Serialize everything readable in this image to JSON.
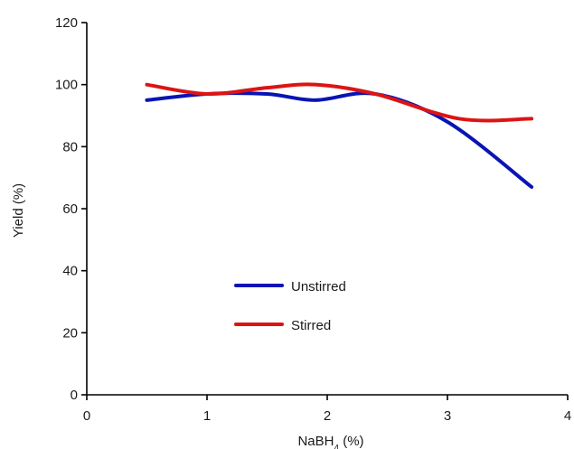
{
  "chart_data": {
    "type": "line",
    "title": "",
    "xlabel": {
      "base": "NaBH",
      "sub": "4",
      "suffix": " (%)"
    },
    "ylabel": "Yield (%)",
    "xlim": [
      0,
      4
    ],
    "ylim": [
      0,
      120
    ],
    "xticks": [
      0,
      1,
      2,
      3,
      4
    ],
    "yticks": [
      0,
      20,
      40,
      60,
      80,
      100,
      120
    ],
    "grid": false,
    "legend_position": "center",
    "series": [
      {
        "name": "Unstirred",
        "color": "#0a14b4",
        "x": [
          0.5,
          1.0,
          1.5,
          1.9,
          2.4,
          3.0,
          3.7
        ],
        "y": [
          95,
          97,
          97,
          95,
          97,
          88,
          67
        ]
      },
      {
        "name": "Stirred",
        "color": "#dc1414",
        "x": [
          0.5,
          1.0,
          1.5,
          1.9,
          2.4,
          3.1,
          3.7
        ],
        "y": [
          100,
          97,
          99,
          100,
          97,
          89,
          89
        ]
      }
    ]
  }
}
